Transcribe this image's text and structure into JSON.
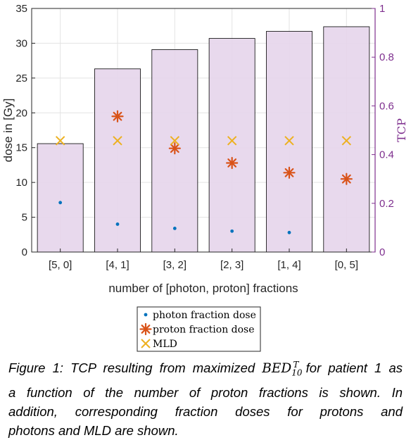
{
  "chart_data": {
    "type": "bar",
    "xlabel": "number of [photon, proton] fractions",
    "ylabel": "dose in [Gy]",
    "ylabel_right": "TCP",
    "categories": [
      "[5, 0]",
      "[4, 1]",
      "[3, 2]",
      "[2, 3]",
      "[1, 4]",
      "[0, 5]"
    ],
    "ylim": [
      0,
      35
    ],
    "yticks": [
      "0",
      "5",
      "10",
      "15",
      "20",
      "25",
      "30",
      "35"
    ],
    "ylim_right": [
      0,
      1
    ],
    "yticks_right": [
      "0",
      "0.2",
      "0.4",
      "0.6",
      "0.8",
      "1"
    ],
    "grid": true,
    "bars": {
      "axis": "right",
      "color": "#E6D5EB",
      "edge": "#000000",
      "values": [
        0.445,
        0.752,
        0.831,
        0.877,
        0.906,
        0.925
      ]
    },
    "series": [
      {
        "name": "photon fraction dose",
        "marker": "dot",
        "color": "#0072BD",
        "values": [
          7.1,
          4.0,
          3.4,
          3.0,
          2.8,
          null
        ]
      },
      {
        "name": "proton fraction dose",
        "marker": "asterisk",
        "color": "#D95319",
        "values": [
          null,
          19.5,
          14.9,
          12.8,
          11.4,
          10.5
        ]
      },
      {
        "name": "MLD",
        "marker": "x",
        "color": "#EDB120",
        "values": [
          16.0,
          16.0,
          16.0,
          16.0,
          16.0,
          16.0
        ]
      }
    ],
    "legend": "bottom-center"
  },
  "caption": {
    "lines": [
      "Figure 1: TCP resulting from maximized ",
      "a function of the number of proton fractions is shown. In",
      "addition, corresponding fraction doses for protons and",
      "photons and MLD are shown."
    ],
    "bed_base": "BED",
    "bed_sup": "T",
    "bed_sub": "10",
    "line1_tail": " for patient 1 as"
  }
}
